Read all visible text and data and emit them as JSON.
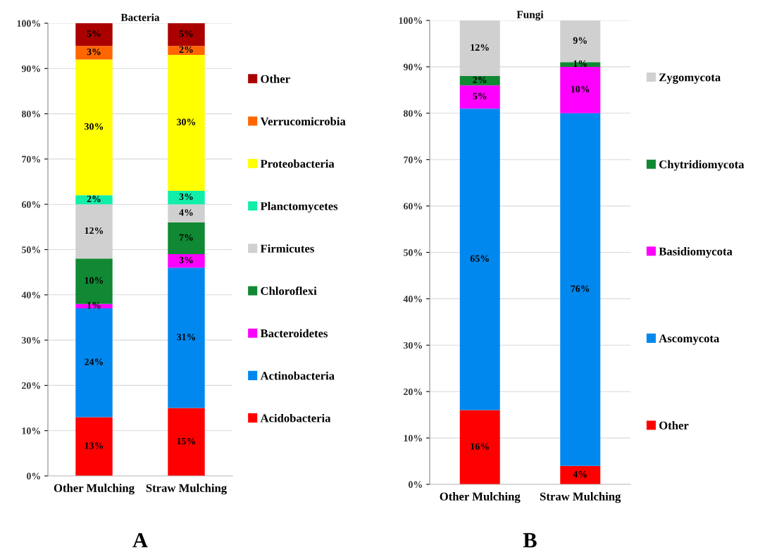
{
  "chart_data": [
    {
      "type": "bar",
      "stacked": true,
      "title": "Bacteria",
      "categories": [
        "Other Mulching",
        "Straw Mulching"
      ],
      "ylim": [
        0,
        100
      ],
      "yticks": [
        {
          "value": 0,
          "label": "0%"
        },
        {
          "value": 10,
          "label": "10%"
        },
        {
          "value": 20,
          "label": "20%"
        },
        {
          "value": 30,
          "label": "30%"
        },
        {
          "value": 40,
          "label": "40%"
        },
        {
          "value": 50,
          "label": "50%"
        },
        {
          "value": 60,
          "label": "60%"
        },
        {
          "value": 70,
          "label": "70%"
        },
        {
          "value": 80,
          "label": "80%"
        },
        {
          "value": 90,
          "label": "90%"
        },
        {
          "value": 100,
          "label": "100%"
        }
      ],
      "grid": "y",
      "legend": "right",
      "annotations": [
        "A"
      ],
      "series": [
        {
          "name": "Acidobacteria",
          "color": "#ff0000",
          "values": [
            13,
            15
          ],
          "value_labels": [
            "13%",
            "15%"
          ]
        },
        {
          "name": "Actinobacteria",
          "color": "#0088ee",
          "values": [
            24,
            31
          ],
          "value_labels": [
            "24%",
            "31%"
          ]
        },
        {
          "name": "Bacteroidetes",
          "color": "#ff00ff",
          "values": [
            1,
            3
          ],
          "value_labels": [
            "1%",
            "3%"
          ]
        },
        {
          "name": "Chloroflexi",
          "color": "#118833",
          "values": [
            10,
            7
          ],
          "value_labels": [
            "10%",
            "7%"
          ]
        },
        {
          "name": "Firmicutes",
          "color": "#d0d0d0",
          "values": [
            12,
            4
          ],
          "value_labels": [
            "12%",
            "4%"
          ]
        },
        {
          "name": "Planctomycetes",
          "color": "#11eeaa",
          "values": [
            2,
            3
          ],
          "value_labels": [
            "2%",
            "3%"
          ]
        },
        {
          "name": "Proteobacteria",
          "color": "#ffff00",
          "values": [
            30,
            30
          ],
          "value_labels": [
            "30%",
            "30%"
          ]
        },
        {
          "name": "Verrucomicrobia",
          "color": "#ff6600",
          "values": [
            3,
            2
          ],
          "value_labels": [
            "3%",
            "2%"
          ]
        },
        {
          "name": "Other",
          "color": "#aa0000",
          "values": [
            5,
            5
          ],
          "value_labels": [
            "5%",
            "5%"
          ]
        }
      ]
    },
    {
      "type": "bar",
      "stacked": true,
      "title": "Fungi",
      "categories": [
        "Other Mulching",
        "Straw Mulching"
      ],
      "ylim": [
        0,
        100
      ],
      "yticks": [
        {
          "value": 0,
          "label": "0%"
        },
        {
          "value": 10,
          "label": "10%"
        },
        {
          "value": 20,
          "label": "20%"
        },
        {
          "value": 30,
          "label": "30%"
        },
        {
          "value": 40,
          "label": "40%"
        },
        {
          "value": 50,
          "label": "50%"
        },
        {
          "value": 60,
          "label": "60%"
        },
        {
          "value": 70,
          "label": "70%"
        },
        {
          "value": 80,
          "label": "80%"
        },
        {
          "value": 90,
          "label": "90%"
        },
        {
          "value": 100,
          "label": "100%"
        }
      ],
      "grid": "y",
      "legend": "right",
      "annotations": [
        "B"
      ],
      "series": [
        {
          "name": "Other",
          "color": "#ff0000",
          "values": [
            16,
            4
          ],
          "value_labels": [
            "16%",
            "4%"
          ]
        },
        {
          "name": "Ascomycota",
          "color": "#0088ee",
          "values": [
            65,
            76
          ],
          "value_labels": [
            "65%",
            "76%"
          ]
        },
        {
          "name": "Basidiomycota",
          "color": "#ff00ff",
          "values": [
            5,
            10
          ],
          "value_labels": [
            "5%",
            "10%"
          ]
        },
        {
          "name": "Chytridiomycota",
          "color": "#118833",
          "values": [
            2,
            1
          ],
          "value_labels": [
            "2%",
            "1%"
          ]
        },
        {
          "name": "Zygomycota",
          "color": "#d0d0d0",
          "values": [
            12,
            9
          ],
          "value_labels": [
            "12%",
            "9%"
          ]
        }
      ]
    }
  ]
}
